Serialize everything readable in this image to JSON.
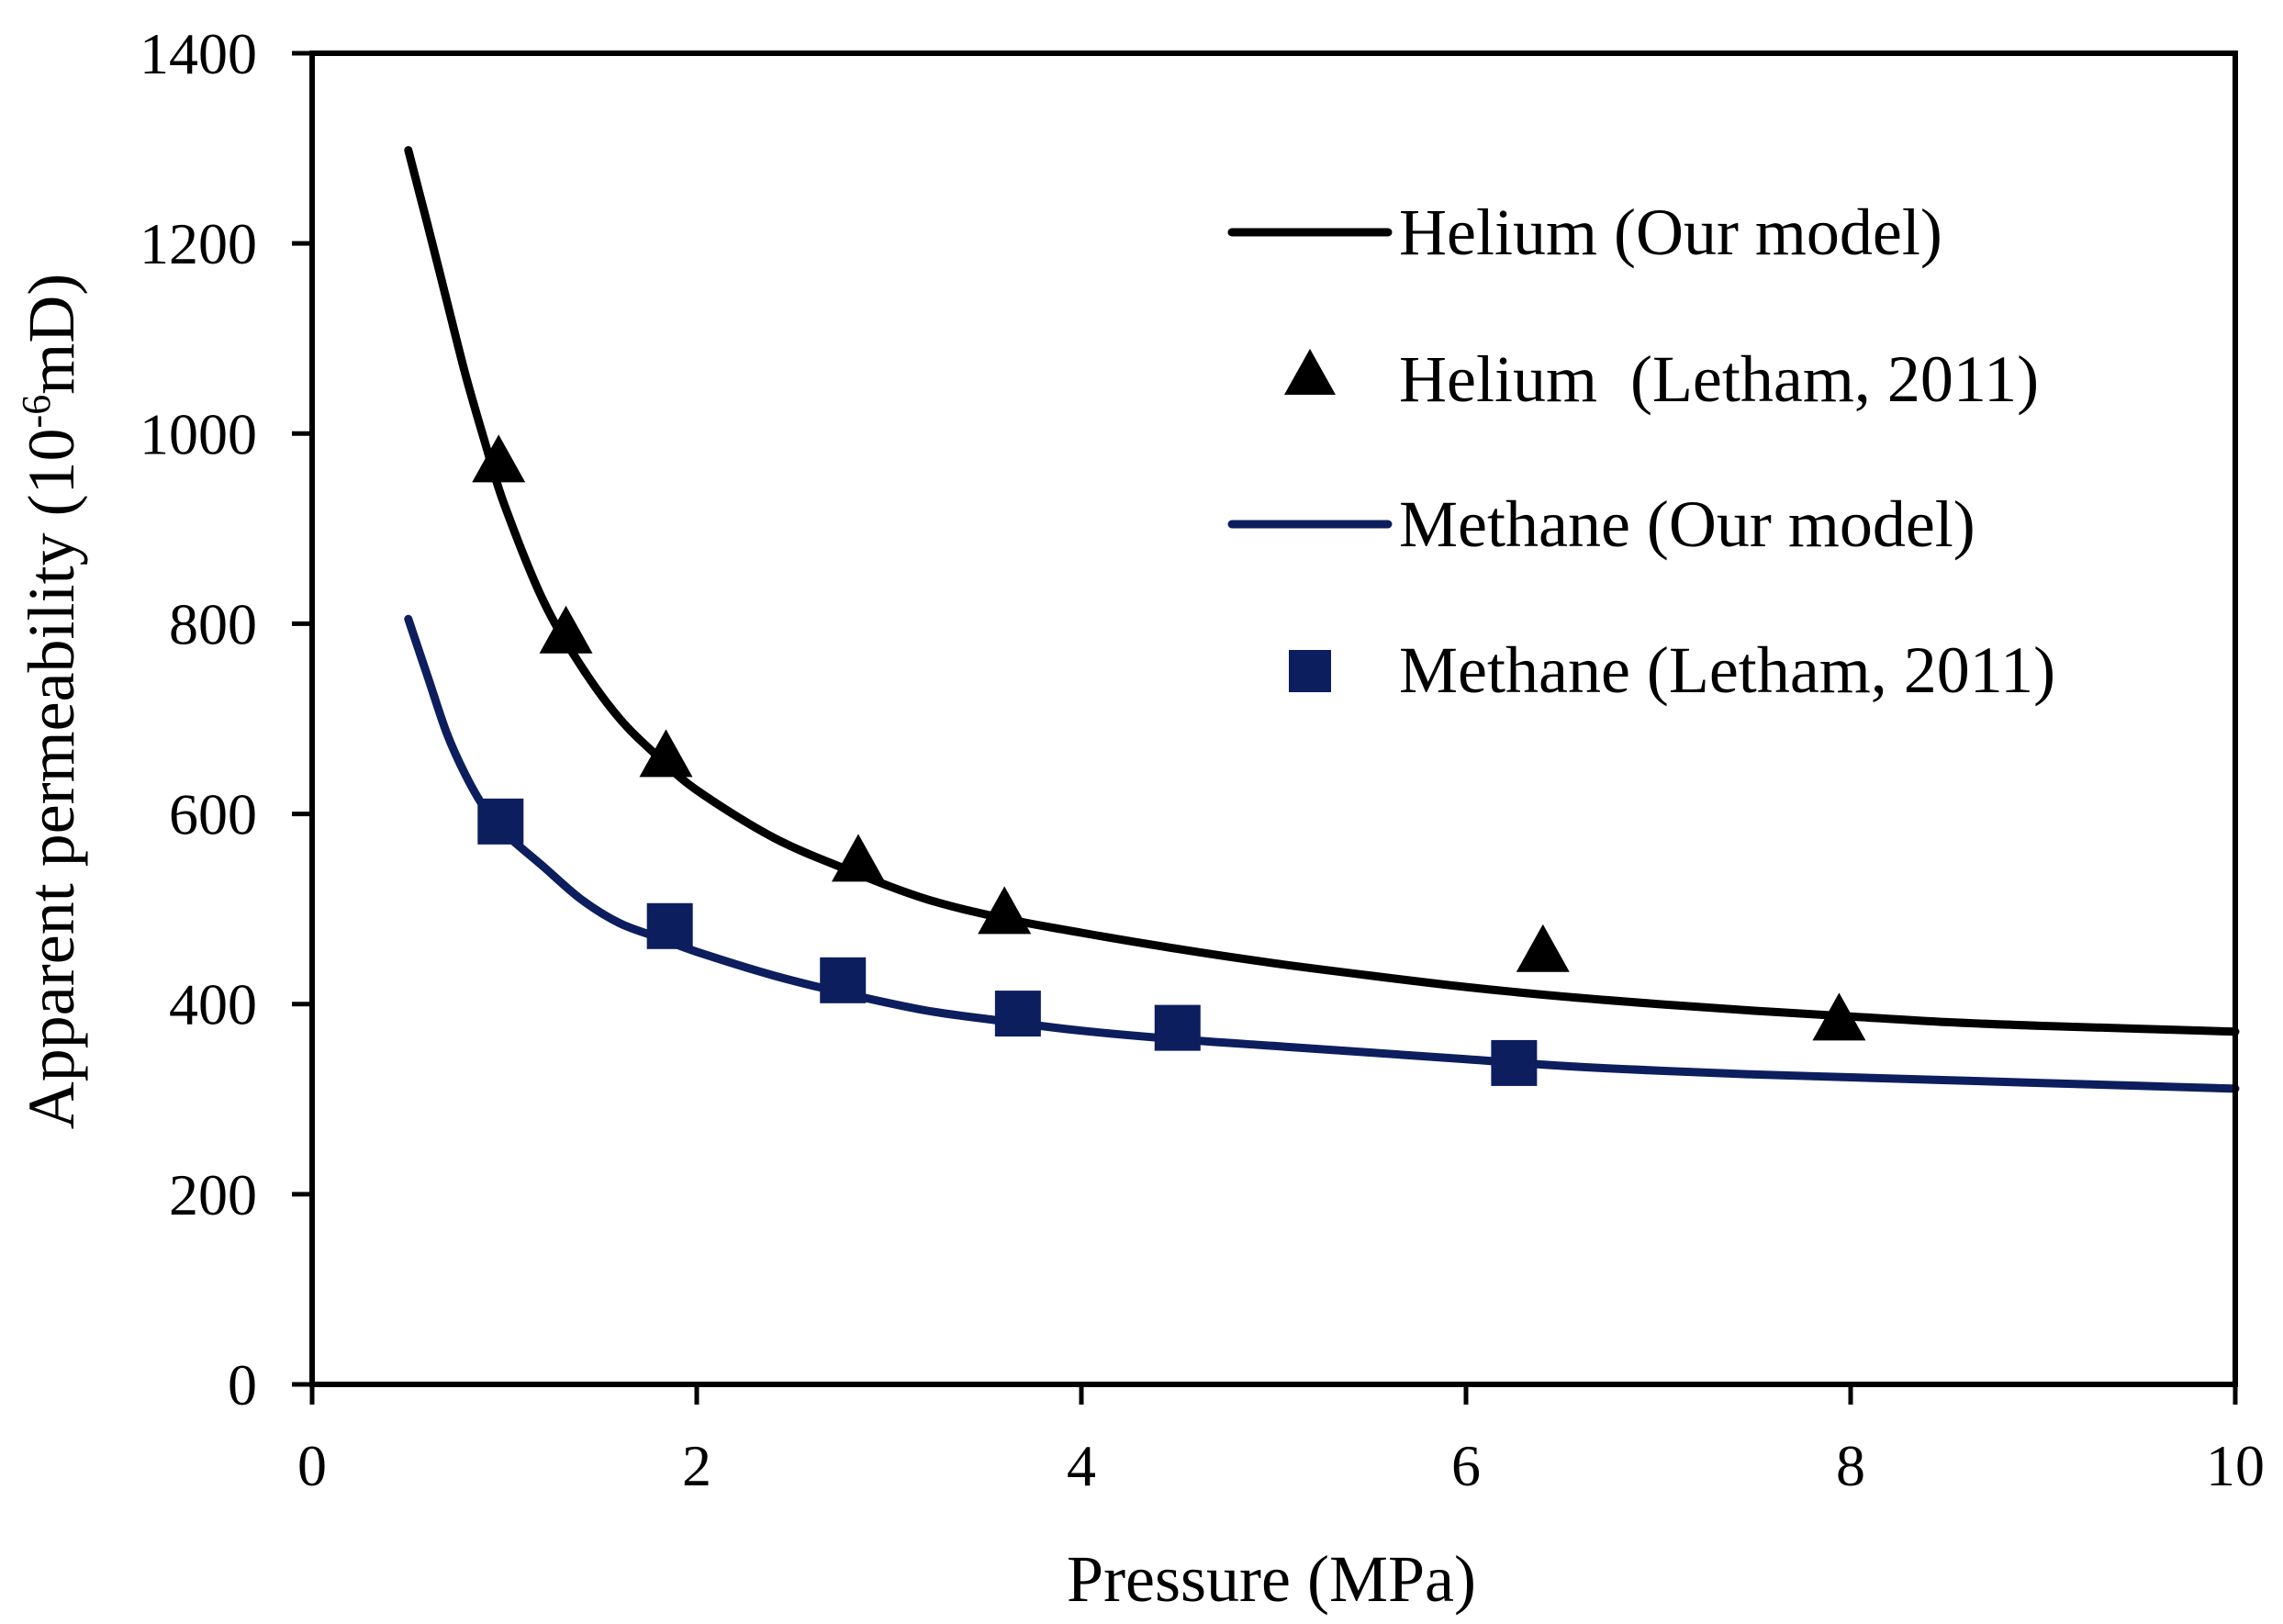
{
  "chart_data": {
    "type": "line",
    "title": "",
    "xlabel": "Pressure (MPa)",
    "ylabel": {
      "prefix": "Apparent permeability (10",
      "superscript": "-6",
      "suffix": "mD)"
    },
    "xlim": [
      0,
      10
    ],
    "ylim": [
      0,
      1400
    ],
    "xticks": [
      0,
      2,
      4,
      6,
      8,
      10
    ],
    "yticks": [
      0,
      200,
      400,
      600,
      800,
      1000,
      1200,
      1400
    ],
    "grid": false,
    "legend_position": "top-right",
    "series": [
      {
        "name": "Helium (Our model)",
        "kind": "line",
        "color": "#000000",
        "x": [
          0.5,
          0.6,
          0.7,
          0.8,
          0.9,
          1.0,
          1.2,
          1.4,
          1.6,
          1.8,
          2.0,
          2.4,
          2.8,
          3.2,
          3.6,
          4.0,
          4.5,
          5.0,
          5.5,
          6.0,
          6.5,
          7.0,
          7.5,
          8.0,
          8.5,
          9.0,
          9.5,
          10.0
        ],
        "y": [
          1298,
          1220,
          1140,
          1060,
          990,
          925,
          825,
          755,
          700,
          660,
          625,
          575,
          540,
          510,
          490,
          475,
          458,
          443,
          430,
          418,
          408,
          400,
          393,
          387,
          381,
          377,
          374,
          371
        ]
      },
      {
        "name": "Helium  (Letham, 2011)",
        "kind": "marker",
        "marker": "triangle",
        "color": "#000000",
        "x": [
          0.97,
          1.32,
          1.84,
          2.84,
          3.6,
          6.4,
          7.94
        ],
        "y": [
          970,
          790,
          660,
          550,
          495,
          455,
          383
        ]
      },
      {
        "name": "Methane (Our model)",
        "kind": "line",
        "color": "#0d1e5e",
        "x": [
          0.5,
          0.6,
          0.7,
          0.8,
          0.9,
          1.0,
          1.2,
          1.4,
          1.6,
          1.8,
          2.0,
          2.4,
          2.8,
          3.2,
          3.6,
          4.0,
          4.5,
          5.0,
          5.5,
          6.0,
          6.5,
          7.0,
          7.5,
          8.0,
          8.5,
          9.0,
          9.5,
          10.0
        ],
        "y": [
          805,
          745,
          685,
          640,
          605,
          580,
          545,
          510,
          485,
          470,
          455,
          430,
          410,
          393,
          382,
          372,
          363,
          356,
          349,
          342,
          335,
          330,
          326,
          323,
          320,
          317,
          314,
          311
        ]
      },
      {
        "name": "Methane (Letham, 2011)",
        "kind": "marker",
        "marker": "square",
        "color": "#0d1e5e",
        "x": [
          0.98,
          1.86,
          2.76,
          3.67,
          4.5,
          6.25
        ],
        "y": [
          592,
          482,
          425,
          390,
          375,
          338
        ]
      }
    ]
  }
}
